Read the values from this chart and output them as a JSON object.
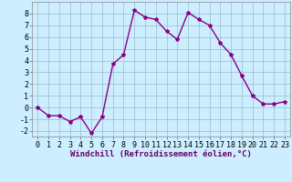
{
  "x": [
    0,
    1,
    2,
    3,
    4,
    5,
    6,
    7,
    8,
    9,
    10,
    11,
    12,
    13,
    14,
    15,
    16,
    17,
    18,
    19,
    20,
    21,
    22,
    23
  ],
  "y": [
    0.0,
    -0.7,
    -0.7,
    -1.2,
    -0.8,
    -2.2,
    -0.8,
    3.7,
    4.5,
    8.3,
    7.7,
    7.5,
    6.5,
    5.8,
    8.1,
    7.5,
    7.0,
    5.5,
    4.5,
    2.7,
    1.0,
    0.3,
    0.3,
    0.5
  ],
  "line_color": "#880088",
  "marker": "*",
  "marker_size": 3,
  "bg_color": "#cceeff",
  "grid_color": "#99bbcc",
  "xlabel": "Windchill (Refroidissement éolien,°C)",
  "xlim": [
    -0.5,
    23.5
  ],
  "ylim": [
    -2.5,
    9.0
  ],
  "xticks": [
    0,
    1,
    2,
    3,
    4,
    5,
    6,
    7,
    8,
    9,
    10,
    11,
    12,
    13,
    14,
    15,
    16,
    17,
    18,
    19,
    20,
    21,
    22,
    23
  ],
  "yticks": [
    -2,
    -1,
    0,
    1,
    2,
    3,
    4,
    5,
    6,
    7,
    8
  ],
  "tick_fontsize": 6,
  "xlabel_fontsize": 6.5,
  "line_width": 1.0
}
